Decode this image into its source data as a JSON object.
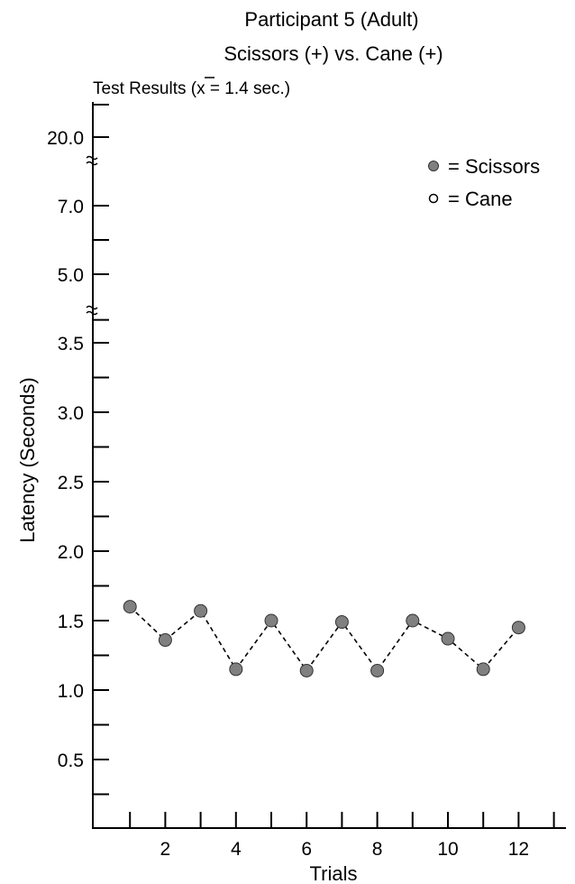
{
  "chart_data": {
    "type": "scatter",
    "title_line1": "Participant 5 (Adult)",
    "title_line2": "Scissors (+) vs. Cane (+)",
    "subtitle_prefix": "Test Results (",
    "subtitle_mean_symbol": "x",
    "subtitle_suffix": " = 1.4 sec.)",
    "xlabel": "Trials",
    "ylabel": "Latency (Seconds)",
    "x_ticks": [
      {
        "value": 2,
        "label": "2"
      },
      {
        "value": 4,
        "label": "4"
      },
      {
        "value": 6,
        "label": "6"
      },
      {
        "value": 8,
        "label": "8"
      },
      {
        "value": 10,
        "label": "10"
      },
      {
        "value": 12,
        "label": "12"
      }
    ],
    "y_ticks": [
      {
        "value": 0.5,
        "label": "0.5"
      },
      {
        "value": 1.0,
        "label": "1.0"
      },
      {
        "value": 1.5,
        "label": "1.5"
      },
      {
        "value": 2.0,
        "label": "2.0"
      },
      {
        "value": 2.5,
        "label": "2.5"
      },
      {
        "value": 3.0,
        "label": "3.0"
      },
      {
        "value": 3.5,
        "label": "3.5"
      },
      {
        "value": 5.0,
        "label": "5.0"
      },
      {
        "value": 7.0,
        "label": "7.0"
      },
      {
        "value": 20.0,
        "label": "20.0"
      }
    ],
    "y_axis_breaks": [
      "between 3.5 and 5.0",
      "between 7.0 and 20.0"
    ],
    "legend": [
      {
        "name": "Scissors",
        "label": "= Scissors",
        "marker": "filled"
      },
      {
        "name": "Cane",
        "label": "= Cane",
        "marker": "open"
      }
    ],
    "legend_position": "top-right",
    "series": [
      {
        "name": "Scissors",
        "marker": "filled",
        "color": "#808080",
        "line_style": "dashed",
        "x": [
          1,
          2,
          3,
          4,
          5,
          6,
          7,
          8,
          9,
          10,
          11,
          12
        ],
        "y": [
          1.6,
          1.36,
          1.57,
          1.15,
          1.5,
          1.14,
          1.49,
          1.14,
          1.5,
          1.37,
          1.15,
          1.45
        ]
      }
    ],
    "grid": false
  }
}
